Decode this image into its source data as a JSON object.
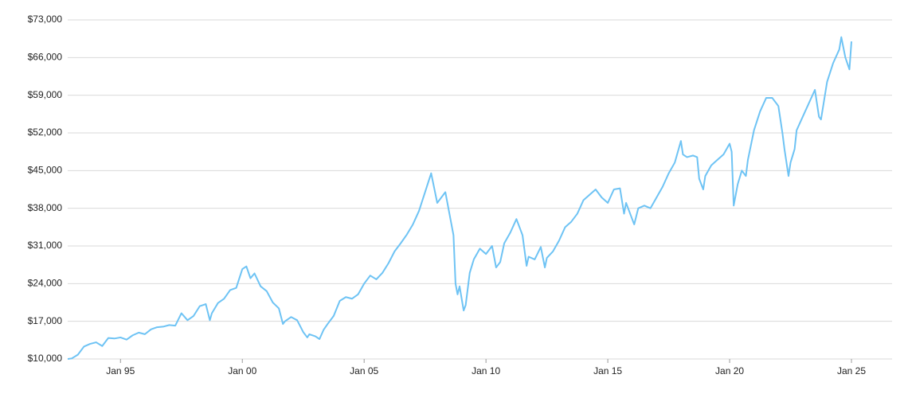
{
  "chart_data": {
    "type": "line",
    "x": [
      "1992-11",
      "1993-01",
      "1993-04",
      "1993-07",
      "1993-10",
      "1994-01",
      "1994-04",
      "1994-07",
      "1994-10",
      "1995-01",
      "1995-04",
      "1995-07",
      "1995-10",
      "1996-01",
      "1996-04",
      "1996-07",
      "1996-10",
      "1997-01",
      "1997-04",
      "1997-07",
      "1997-10",
      "1998-01",
      "1998-04",
      "1998-07",
      "1998-09",
      "1998-10",
      "1999-01",
      "1999-04",
      "1999-07",
      "1999-10",
      "2000-01",
      "2000-03",
      "2000-05",
      "2000-07",
      "2000-10",
      "2001-01",
      "2001-04",
      "2001-07",
      "2001-09",
      "2001-10",
      "2002-01",
      "2002-04",
      "2002-07",
      "2002-09",
      "2002-10",
      "2003-01",
      "2003-03",
      "2003-05",
      "2003-07",
      "2003-10",
      "2004-01",
      "2004-04",
      "2004-07",
      "2004-10",
      "2005-01",
      "2005-04",
      "2005-07",
      "2005-10",
      "2006-01",
      "2006-04",
      "2006-07",
      "2006-10",
      "2007-01",
      "2007-04",
      "2007-07",
      "2007-10",
      "2008-01",
      "2008-04",
      "2008-05",
      "2008-07",
      "2008-09",
      "2008-10",
      "2008-11",
      "2008-12",
      "2009-02",
      "2009-03",
      "2009-05",
      "2009-07",
      "2009-10",
      "2010-01",
      "2010-04",
      "2010-06",
      "2010-08",
      "2010-10",
      "2011-01",
      "2011-04",
      "2011-07",
      "2011-09",
      "2011-10",
      "2012-01",
      "2012-04",
      "2012-06",
      "2012-07",
      "2012-10",
      "2013-01",
      "2013-04",
      "2013-07",
      "2013-10",
      "2014-01",
      "2014-04",
      "2014-07",
      "2014-10",
      "2015-01",
      "2015-04",
      "2015-07",
      "2015-09",
      "2015-10",
      "2016-01",
      "2016-02",
      "2016-04",
      "2016-07",
      "2016-10",
      "2017-01",
      "2017-04",
      "2017-07",
      "2017-10",
      "2018-01",
      "2018-02",
      "2018-04",
      "2018-07",
      "2018-09",
      "2018-10",
      "2018-12",
      "2019-01",
      "2019-04",
      "2019-07",
      "2019-10",
      "2020-01",
      "2020-02",
      "2020-03",
      "2020-05",
      "2020-07",
      "2020-09",
      "2020-10",
      "2021-01",
      "2021-04",
      "2021-07",
      "2021-10",
      "2022-01",
      "2022-03",
      "2022-04",
      "2022-06",
      "2022-07",
      "2022-09",
      "2022-10",
      "2023-01",
      "2023-04",
      "2023-07",
      "2023-09",
      "2023-10",
      "2024-01",
      "2024-04",
      "2024-07",
      "2024-08",
      "2024-10",
      "2024-12",
      "2025-01"
    ],
    "series": [
      {
        "color": "#6ec3f4",
        "values": [
          10000,
          10100,
          10800,
          12300,
          12800,
          13100,
          12400,
          13900,
          13800,
          14000,
          13600,
          14400,
          14900,
          14600,
          15500,
          15900,
          16000,
          16300,
          16200,
          18500,
          17200,
          18000,
          19800,
          20200,
          17200,
          18500,
          20400,
          21200,
          22800,
          23200,
          26700,
          27200,
          25000,
          25900,
          23500,
          22600,
          20500,
          19400,
          16500,
          17000,
          17800,
          17200,
          15000,
          14000,
          14600,
          14200,
          13700,
          15400,
          16500,
          18000,
          20800,
          21500,
          21200,
          22000,
          24000,
          25500,
          24800,
          26000,
          27800,
          30000,
          31500,
          33100,
          35000,
          37500,
          41000,
          44500,
          39000,
          40500,
          41000,
          37000,
          33000,
          24000,
          22000,
          23500,
          19000,
          20000,
          26000,
          28500,
          30500,
          29500,
          31000,
          27000,
          28000,
          31500,
          33500,
          36000,
          33000,
          27300,
          29000,
          28500,
          30800,
          27000,
          28800,
          30000,
          32000,
          34500,
          35500,
          37000,
          39500,
          40500,
          41500,
          40000,
          39000,
          41500,
          41700,
          37000,
          39000,
          36000,
          35000,
          38000,
          38500,
          38000,
          40000,
          42000,
          44500,
          46500,
          50500,
          48000,
          47500,
          47800,
          47500,
          43500,
          41500,
          44000,
          46000,
          47000,
          48000,
          50000,
          48500,
          38500,
          42500,
          45000,
          44000,
          47000,
          52500,
          56000,
          58500,
          58500,
          57000,
          52000,
          49000,
          44000,
          46500,
          49000,
          52500,
          55000,
          57500,
          60000,
          55000,
          54500,
          61500,
          65000,
          67500,
          69800,
          66000,
          63800,
          69000
        ]
      }
    ],
    "xlim": [
      "1992-11",
      "2026-09"
    ],
    "xticks": [
      {
        "value": "1995-01",
        "label": "Jan 95"
      },
      {
        "value": "2000-01",
        "label": "Jan 00"
      },
      {
        "value": "2005-01",
        "label": "Jan 05"
      },
      {
        "value": "2010-01",
        "label": "Jan 10"
      },
      {
        "value": "2015-01",
        "label": "Jan 15"
      },
      {
        "value": "2020-01",
        "label": "Jan 20"
      },
      {
        "value": "2025-01",
        "label": "Jan 25"
      }
    ],
    "ylim": [
      10000,
      73000
    ],
    "yticks": [
      {
        "value": 10000,
        "label": "$10,000"
      },
      {
        "value": 17000,
        "label": "$17,000"
      },
      {
        "value": 24000,
        "label": "$24,000"
      },
      {
        "value": 31000,
        "label": "$31,000"
      },
      {
        "value": 38000,
        "label": "$38,000"
      },
      {
        "value": 45000,
        "label": "$45,000"
      },
      {
        "value": 52000,
        "label": "$52,000"
      },
      {
        "value": 59000,
        "label": "$59,000"
      },
      {
        "value": 66000,
        "label": "$66,000"
      },
      {
        "value": 73000,
        "label": "$73,000"
      }
    ],
    "grid": true
  }
}
